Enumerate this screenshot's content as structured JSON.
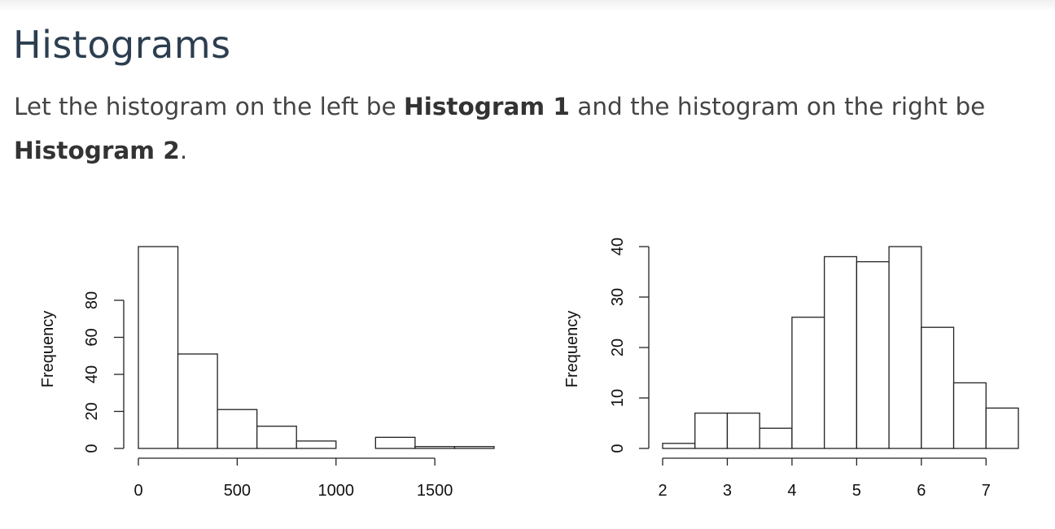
{
  "heading": "Histograms",
  "intro": {
    "before": "Let the histogram on the left be ",
    "bold1": "Histogram 1",
    "middle": " and the histogram on the right be ",
    "bold2": "Histogram 2",
    "after": "."
  },
  "chart_data": [
    {
      "type": "bar",
      "ylabel": "Frequency",
      "bin_edges": [
        0,
        200,
        400,
        600,
        800,
        1000,
        1200,
        1400,
        1600,
        1800
      ],
      "values": [
        109,
        51,
        21,
        12,
        4,
        0,
        6,
        1,
        1
      ],
      "x_ticks": [
        0,
        500,
        1000,
        1500
      ],
      "y_ticks": [
        0,
        20,
        40,
        60,
        80
      ],
      "xlim": [
        0,
        1800
      ],
      "ylim": [
        0,
        109
      ],
      "grid": false
    },
    {
      "type": "bar",
      "ylabel": "Frequency",
      "bin_edges": [
        2,
        2.5,
        3,
        3.5,
        4,
        4.5,
        5,
        5.5,
        6,
        6.5,
        7,
        7.5
      ],
      "values": [
        1,
        7,
        7,
        4,
        26,
        38,
        37,
        40,
        24,
        13,
        8
      ],
      "x_ticks": [
        2,
        3,
        4,
        5,
        6,
        7
      ],
      "y_ticks": [
        0,
        10,
        20,
        30,
        40
      ],
      "xlim": [
        2,
        7.5
      ],
      "ylim": [
        0,
        40
      ],
      "grid": false
    }
  ]
}
